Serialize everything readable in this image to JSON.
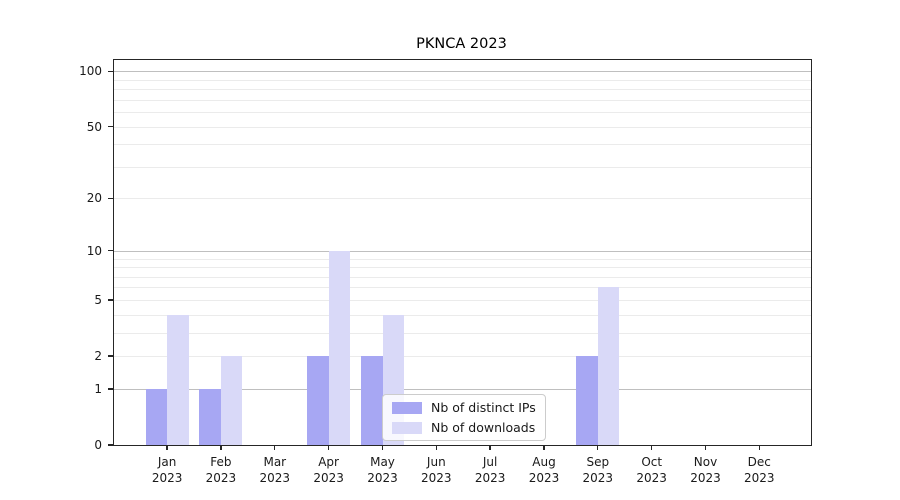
{
  "title": "PKNCA 2023",
  "legend": {
    "items": [
      {
        "label": "Nb of distinct IPs",
        "color": "#a7a7f3"
      },
      {
        "label": "Nb of downloads",
        "color": "#d9d9f8"
      }
    ]
  },
  "chart_data": {
    "type": "bar",
    "title": "PKNCA 2023",
    "categories": [
      "Jan 2023",
      "Feb 2023",
      "Mar 2023",
      "Apr 2023",
      "May 2023",
      "Jun 2023",
      "Jul 2023",
      "Aug 2023",
      "Sep 2023",
      "Oct 2023",
      "Nov 2023",
      "Dec 2023"
    ],
    "series": [
      {
        "name": "Nb of distinct IPs",
        "color": "#a7a7f3",
        "values": [
          1,
          1,
          0,
          2,
          2,
          0,
          0,
          0,
          2,
          0,
          0,
          0
        ]
      },
      {
        "name": "Nb of downloads",
        "color": "#d9d9f8",
        "values": [
          4,
          2,
          0,
          10,
          4,
          0,
          0,
          0,
          6,
          0,
          0,
          0
        ]
      }
    ],
    "xlabel": "",
    "ylabel": "",
    "yscale": "log10(1+v)",
    "ylim_ticks": [
      0,
      1,
      2,
      5,
      10,
      20,
      50,
      100
    ],
    "grid_major_values": [
      1,
      10,
      100
    ],
    "grid_minor_values": [
      2,
      3,
      4,
      5,
      6,
      7,
      8,
      9,
      20,
      30,
      40,
      50,
      60,
      70,
      80,
      90
    ],
    "grid": "on",
    "legend_position": "lower center"
  },
  "colors": {
    "grid_major": "#bfbfbf",
    "grid_minor": "#ebebeb",
    "spine": "#262626"
  }
}
